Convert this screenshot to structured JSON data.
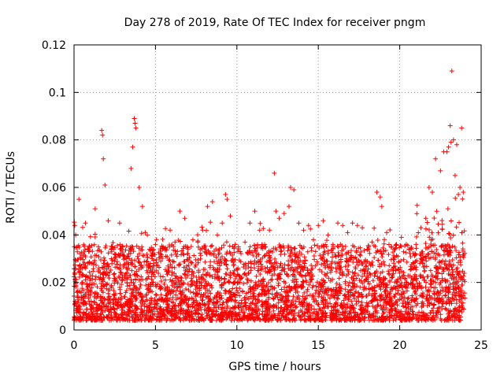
{
  "chart_data": {
    "type": "scatter",
    "title": "Day 278 of 2019, Rate Of TEC Index for receiver pngm",
    "xlabel": "GPS time / hours",
    "ylabel": "ROTI / TECUs",
    "xlim": [
      0,
      25
    ],
    "ylim": [
      0,
      0.12
    ],
    "x_ticks": [
      0,
      5,
      10,
      15,
      20,
      25
    ],
    "x_tick_labels": [
      "0",
      "5",
      "10",
      "15",
      "20",
      "25"
    ],
    "y_ticks": [
      0,
      0.02,
      0.04,
      0.06,
      0.08,
      0.1,
      0.12
    ],
    "y_tick_labels": [
      "0",
      "0.02",
      "0.04",
      "0.06",
      "0.08",
      "0.1",
      "0.12"
    ],
    "grid": true,
    "marker": "+",
    "series": [
      {
        "name": "ROTI",
        "color": "#ff0000",
        "x": [
          0.05,
          0.1,
          0.2,
          0.3,
          0.4,
          0.5,
          0.7,
          0.9,
          1.1,
          1.3,
          1.5,
          1.7,
          1.75,
          1.8,
          1.9,
          2.1,
          2.3,
          2.5,
          2.8,
          3.0,
          3.2,
          3.5,
          3.6,
          3.7,
          3.75,
          3.8,
          4.0,
          4.2,
          4.5,
          4.8,
          5.0,
          5.3,
          5.6,
          5.9,
          6.2,
          6.5,
          6.8,
          7.0,
          7.3,
          7.6,
          7.9,
          8.2,
          8.5,
          8.8,
          9.1,
          9.3,
          9.4,
          9.6,
          9.9,
          10.2,
          10.5,
          10.8,
          11.1,
          11.4,
          11.7,
          12.0,
          12.3,
          12.4,
          12.6,
          12.9,
          13.2,
          13.3,
          13.5,
          13.8,
          14.1,
          14.4,
          14.7,
          15.0,
          15.3,
          15.6,
          15.9,
          16.2,
          16.5,
          16.8,
          17.1,
          17.4,
          17.7,
          18.0,
          18.3,
          18.6,
          18.8,
          18.9,
          19.2,
          19.5,
          19.8,
          20.1,
          20.4,
          20.7,
          21.0,
          21.3,
          21.6,
          21.8,
          22.0,
          22.2,
          22.5,
          22.7,
          22.9,
          23.0,
          23.1,
          23.15,
          23.2,
          23.3,
          23.4,
          23.5,
          23.6,
          23.7,
          23.8,
          23.9
        ],
        "y": [
          0.044,
          0.04,
          0.035,
          0.055,
          0.03,
          0.026,
          0.045,
          0.033,
          0.028,
          0.051,
          0.035,
          0.084,
          0.082,
          0.072,
          0.061,
          0.046,
          0.034,
          0.032,
          0.045,
          0.035,
          0.03,
          0.068,
          0.077,
          0.089,
          0.087,
          0.085,
          0.06,
          0.052,
          0.04,
          0.03,
          0.036,
          0.032,
          0.034,
          0.042,
          0.037,
          0.05,
          0.047,
          0.034,
          0.038,
          0.037,
          0.042,
          0.052,
          0.054,
          0.04,
          0.045,
          0.057,
          0.055,
          0.048,
          0.036,
          0.033,
          0.037,
          0.045,
          0.05,
          0.042,
          0.036,
          0.042,
          0.066,
          0.05,
          0.047,
          0.049,
          0.052,
          0.06,
          0.059,
          0.045,
          0.042,
          0.044,
          0.038,
          0.044,
          0.046,
          0.04,
          0.036,
          0.045,
          0.044,
          0.041,
          0.045,
          0.044,
          0.043,
          0.034,
          0.037,
          0.058,
          0.056,
          0.052,
          0.041,
          0.035,
          0.036,
          0.039,
          0.036,
          0.034,
          0.036,
          0.043,
          0.047,
          0.06,
          0.058,
          0.072,
          0.067,
          0.075,
          0.075,
          0.077,
          0.086,
          0.079,
          0.109,
          0.08,
          0.065,
          0.078,
          0.057,
          0.06,
          0.085,
          0.058
        ]
      }
    ]
  }
}
